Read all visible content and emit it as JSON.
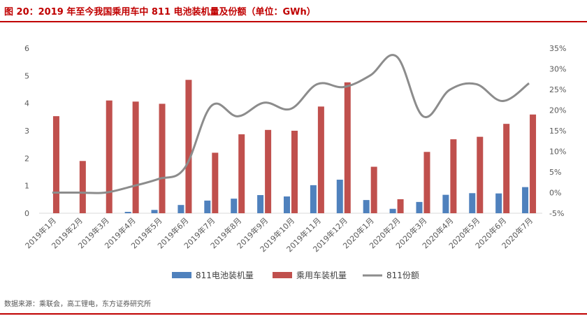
{
  "header": {
    "title": "图 20：2019 年至今我国乘用车中 811 电池装机量及份额（单位：GWh）"
  },
  "footer": {
    "source": "数据来源：乘联会，高工锂电，东方证券研究所"
  },
  "colors": {
    "accent": "#c00000",
    "series_811": "#4f81bd",
    "series_total": "#c0504d",
    "series_share": "#8c8c8c"
  },
  "chart_data": {
    "type": "bar",
    "title": "",
    "categories": [
      "2019年1月",
      "2019年2月",
      "2019年3月",
      "2019年4月",
      "2019年5月",
      "2019年6月",
      "2019年7月",
      "2019年8月",
      "2019年9月",
      "2019年10月",
      "2019年11月",
      "2019年12月",
      "2020年1月",
      "2020年2月",
      "2020年3月",
      "2020年4月",
      "2020年5月",
      "2020年6月",
      "2020年7月"
    ],
    "series": [
      {
        "name": "811电池装机量",
        "type": "bar",
        "axis": "left",
        "values": [
          0,
          0,
          0,
          0.05,
          0.12,
          0.3,
          0.46,
          0.53,
          0.66,
          0.61,
          1.02,
          1.22,
          0.48,
          0.16,
          0.41,
          0.67,
          0.73,
          0.72,
          0.95
        ]
      },
      {
        "name": "乘用车装机量",
        "type": "bar",
        "axis": "left",
        "values": [
          3.53,
          1.9,
          4.1,
          4.06,
          3.98,
          4.85,
          2.2,
          2.87,
          3.03,
          3.0,
          3.88,
          4.76,
          1.69,
          0.51,
          2.23,
          2.69,
          2.78,
          3.25,
          3.59
        ]
      },
      {
        "name": "811份额",
        "type": "line",
        "axis": "right",
        "values": [
          0.0,
          0.0,
          0.0,
          1.5,
          3.3,
          6.0,
          21.0,
          18.5,
          21.8,
          20.3,
          26.3,
          25.6,
          28.4,
          33.0,
          18.5,
          24.9,
          26.3,
          22.2,
          26.5
        ]
      }
    ],
    "y_left": {
      "ylim": [
        0,
        6
      ],
      "ticks": [
        "0",
        "1",
        "2",
        "3",
        "4",
        "5",
        "6"
      ]
    },
    "y_right": {
      "ylim": [
        -5,
        35
      ],
      "ticks": [
        "-5%",
        "0%",
        "5%",
        "10%",
        "15%",
        "20%",
        "25%",
        "30%",
        "35%"
      ]
    },
    "grid": false,
    "legend": "bottom"
  }
}
